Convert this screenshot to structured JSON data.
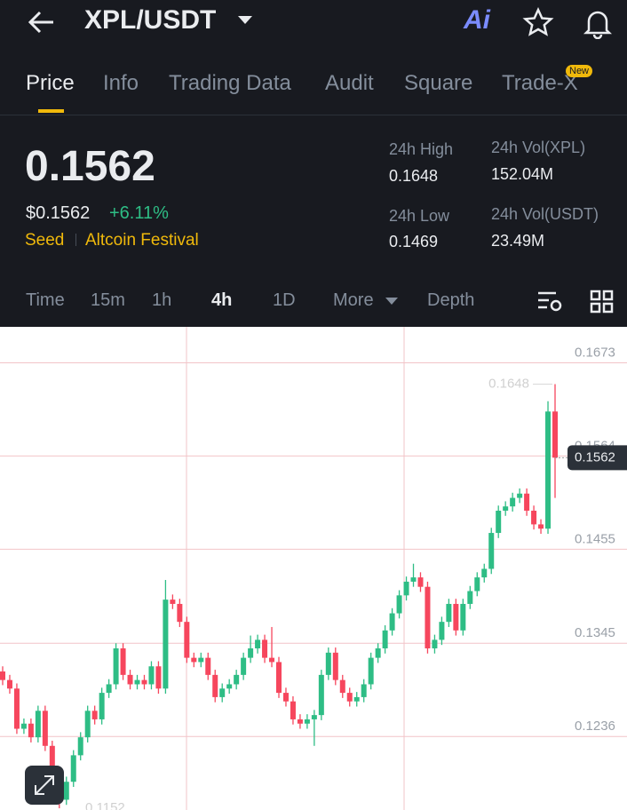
{
  "header": {
    "title": "XPL/USDT"
  },
  "tabs": [
    "Price",
    "Info",
    "Trading Data",
    "Audit",
    "Square",
    "Trade-X"
  ],
  "tab_badge": "New",
  "price": {
    "last": "0.1562",
    "fiat": "$0.1562",
    "change": "+6.11%",
    "tags": [
      "Seed",
      "Altcoin Festival"
    ]
  },
  "stats": [
    {
      "label": "24h High",
      "value": "0.1648"
    },
    {
      "label": "24h Vol(XPL)",
      "value": "152.04M"
    },
    {
      "label": "24h Low",
      "value": "0.1469"
    },
    {
      "label": "24h Vol(USDT)",
      "value": "23.49M"
    }
  ],
  "timeframes": [
    "Time",
    "15m",
    "1h",
    "4h",
    "1D",
    "More",
    "Depth"
  ],
  "chart_data": {
    "type": "candlestick",
    "up_color": "#2ebd85",
    "down_color": "#f6465d",
    "ylim": [
      0.115,
      0.1715
    ],
    "yticks": [
      0.1673,
      0.1564,
      0.1455,
      0.1345,
      0.1236
    ],
    "grid": true,
    "high_marker": 0.1648,
    "low_marker": 0.1152,
    "last_price": 0.1562,
    "open": [
      0.1312,
      0.1302,
      0.1292,
      0.1245,
      0.1251,
      0.1235,
      0.1266,
      0.1225,
      0.1193,
      0.1162,
      0.1183,
      0.1214,
      0.1235,
      0.1266,
      0.1256,
      0.1287,
      0.1297,
      0.1339,
      0.1308,
      0.1297,
      0.1302,
      0.1297,
      0.1318,
      0.1292,
      0.1396,
      0.1391,
      0.137,
      0.1328,
      0.1323,
      0.1328,
      0.1308,
      0.1282,
      0.1292,
      0.1297,
      0.1308,
      0.1328,
      0.1339,
      0.1349,
      0.1328,
      0.1323,
      0.1287,
      0.1277,
      0.1256,
      0.1251,
      0.1256,
      0.1261,
      0.1308,
      0.1334,
      0.1302,
      0.1287,
      0.1277,
      0.1282,
      0.1297,
      0.1328,
      0.1339,
      0.136,
      0.138,
      0.1401,
      0.1417,
      0.1422,
      0.1411,
      0.1339,
      0.1349,
      0.137,
      0.1391,
      0.136,
      0.1391,
      0.1406,
      0.1422,
      0.1432,
      0.1474,
      0.15,
      0.1505,
      0.1515,
      0.152,
      0.15,
      0.1484,
      0.1479,
      0.1616
    ],
    "close": [
      0.1302,
      0.1292,
      0.1245,
      0.1251,
      0.1235,
      0.1266,
      0.1225,
      0.1193,
      0.1162,
      0.1183,
      0.1214,
      0.1235,
      0.1266,
      0.1256,
      0.1287,
      0.1297,
      0.1339,
      0.1308,
      0.1297,
      0.1302,
      0.1297,
      0.1318,
      0.1292,
      0.1396,
      0.1391,
      0.137,
      0.1328,
      0.1323,
      0.1328,
      0.1308,
      0.1282,
      0.1292,
      0.1297,
      0.1308,
      0.1328,
      0.1339,
      0.1349,
      0.1328,
      0.1323,
      0.1287,
      0.1277,
      0.1256,
      0.1251,
      0.1256,
      0.1261,
      0.1308,
      0.1334,
      0.1302,
      0.1287,
      0.1277,
      0.1282,
      0.1297,
      0.1328,
      0.1339,
      0.136,
      0.138,
      0.1401,
      0.1417,
      0.1422,
      0.1411,
      0.1339,
      0.1349,
      0.137,
      0.1391,
      0.136,
      0.1391,
      0.1406,
      0.1422,
      0.1432,
      0.1474,
      0.15,
      0.1505,
      0.1515,
      0.152,
      0.15,
      0.1484,
      0.1479,
      0.1616,
      0.1562
    ],
    "high": [
      0.1318,
      0.1308,
      0.1298,
      0.1257,
      0.1257,
      0.1272,
      0.1272,
      0.1231,
      0.1199,
      0.1189,
      0.122,
      0.1241,
      0.1272,
      0.1272,
      0.1293,
      0.1303,
      0.1345,
      0.1345,
      0.1314,
      0.1308,
      0.1308,
      0.1324,
      0.1324,
      0.1419,
      0.1402,
      0.1397,
      0.1376,
      0.1334,
      0.1334,
      0.1334,
      0.1314,
      0.1298,
      0.1303,
      0.1314,
      0.1334,
      0.1354,
      0.1355,
      0.1355,
      0.1364,
      0.1329,
      0.1293,
      0.1283,
      0.1262,
      0.1262,
      0.1267,
      0.1314,
      0.134,
      0.134,
      0.1308,
      0.1293,
      0.1288,
      0.1303,
      0.1334,
      0.1345,
      0.1366,
      0.1386,
      0.1407,
      0.1423,
      0.1438,
      0.1428,
      0.1417,
      0.1355,
      0.1376,
      0.1397,
      0.1397,
      0.1397,
      0.1412,
      0.1428,
      0.1438,
      0.148,
      0.1506,
      0.1511,
      0.1521,
      0.1526,
      0.1526,
      0.1506,
      0.149,
      0.1628,
      0.1648
    ],
    "low": [
      0.1296,
      0.1286,
      0.1239,
      0.1239,
      0.1229,
      0.1229,
      0.1219,
      0.1187,
      0.1152,
      0.1156,
      0.1177,
      0.1208,
      0.1229,
      0.125,
      0.125,
      0.1281,
      0.1291,
      0.1302,
      0.1291,
      0.1291,
      0.1291,
      0.1291,
      0.1286,
      0.1286,
      0.1385,
      0.1364,
      0.1322,
      0.1317,
      0.1317,
      0.1302,
      0.1276,
      0.1276,
      0.1286,
      0.1291,
      0.1302,
      0.1322,
      0.1333,
      0.1322,
      0.1317,
      0.1281,
      0.1271,
      0.125,
      0.1245,
      0.1245,
      0.1225,
      0.1255,
      0.1302,
      0.1296,
      0.1281,
      0.1271,
      0.1271,
      0.1276,
      0.1291,
      0.1322,
      0.1333,
      0.1354,
      0.1374,
      0.1395,
      0.1411,
      0.1405,
      0.1333,
      0.1333,
      0.1343,
      0.1364,
      0.1354,
      0.1354,
      0.1385,
      0.14,
      0.1416,
      0.1426,
      0.1468,
      0.1494,
      0.1499,
      0.1509,
      0.1494,
      0.1478,
      0.1473,
      0.1473,
      0.1515
    ]
  }
}
